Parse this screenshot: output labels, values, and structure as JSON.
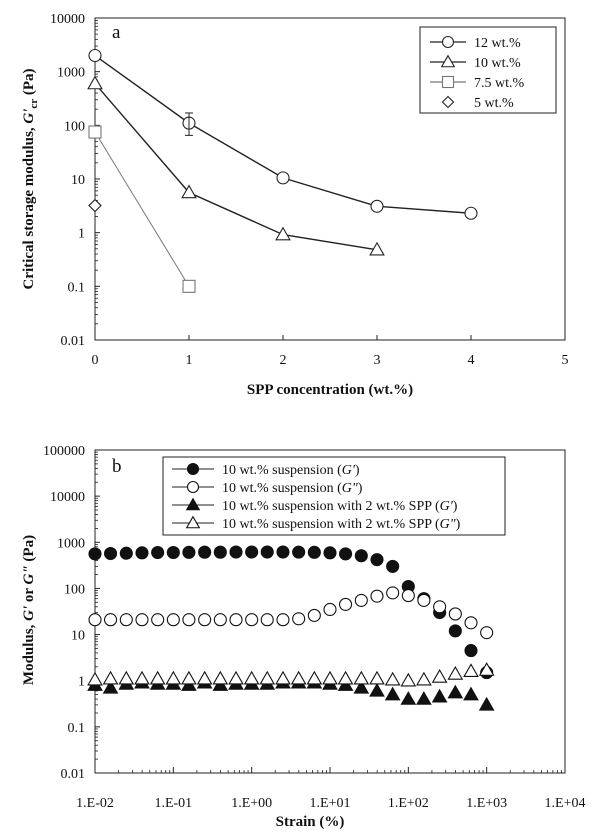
{
  "chart_data": [
    {
      "panel_label": "a",
      "type": "line",
      "xlabel": "SPP concentration (wt.%)",
      "ylabel_main": "Critical storage modulus, ",
      "ylabel_sym": "G'",
      "ylabel_sub": "cr",
      "ylabel_unit": " (Pa)",
      "xlim": [
        0,
        5
      ],
      "ylim": [
        0.01,
        10000
      ],
      "yscale": "log",
      "xticks": [
        "0",
        "1",
        "2",
        "3",
        "4",
        "5"
      ],
      "yticks": [
        "0.01",
        "0.1",
        "1",
        "10",
        "100",
        "1000",
        "10000"
      ],
      "grid": false,
      "legend_position": "top-right",
      "series": [
        {
          "name": "12 wt.%",
          "marker": "circle",
          "color": "#222222",
          "x": [
            0,
            1,
            2,
            3,
            4
          ],
          "y": [
            2000,
            110,
            10.5,
            3.1,
            2.3
          ]
        },
        {
          "name": "10 wt.%",
          "marker": "triangle",
          "color": "#222222",
          "x": [
            0,
            1,
            2,
            3
          ],
          "y": [
            600,
            5.6,
            0.92,
            0.48
          ]
        },
        {
          "name": "7.5 wt.%",
          "marker": "square",
          "color": "#777777",
          "x": [
            0,
            1
          ],
          "y": [
            75,
            0.1
          ]
        },
        {
          "name": "5 wt.%",
          "marker": "diamond",
          "color": "#222222",
          "x": [
            0
          ],
          "y": [
            3.2
          ]
        }
      ]
    },
    {
      "panel_label": "b",
      "type": "scatter",
      "xlabel": "Strain (%)",
      "ylabel_main": "Modulus, ",
      "ylabel_sym1": "G'",
      "ylabel_or": " or ",
      "ylabel_sym2": "G\"",
      "ylabel_unit": " (Pa)",
      "xscale": "log",
      "yscale": "log",
      "xlim": [
        0.01,
        10000
      ],
      "ylim": [
        0.01,
        100000
      ],
      "xticks": [
        "1.E-02",
        "1.E-01",
        "1.E+00",
        "1.E+01",
        "1.E+02",
        "1.E+03",
        "1.E+04"
      ],
      "yticks": [
        "0.01",
        "0.1",
        "1",
        "10",
        "100",
        "1000",
        "10000",
        "100000"
      ],
      "grid": false,
      "legend_position": "top",
      "series": [
        {
          "name_text": "10 wt.% suspension (",
          "name_sym": "G'",
          "name_end": ")",
          "marker": "filled-circle",
          "x": [
            0.01,
            0.0158,
            0.0251,
            0.0398,
            0.0631,
            0.1,
            0.158,
            0.251,
            0.398,
            0.631,
            1,
            1.58,
            2.51,
            3.98,
            6.31,
            10,
            15.8,
            25.1,
            39.8,
            63.1,
            100,
            158,
            251,
            398,
            631,
            1000
          ],
          "y": [
            560,
            570,
            580,
            590,
            600,
            600,
            605,
            610,
            610,
            615,
            615,
            615,
            615,
            612,
            605,
            590,
            560,
            510,
            420,
            300,
            110,
            60,
            30,
            12,
            4.5,
            1.5
          ]
        },
        {
          "name_text": "10 wt.% suspension (",
          "name_sym": "G\"",
          "name_end": ")",
          "marker": "open-circle",
          "x": [
            0.01,
            0.0158,
            0.0251,
            0.0398,
            0.0631,
            0.1,
            0.158,
            0.251,
            0.398,
            0.631,
            1,
            1.58,
            2.51,
            3.98,
            6.31,
            10,
            15.8,
            25.1,
            39.8,
            63.1,
            100,
            158,
            251,
            398,
            631,
            1000
          ],
          "y": [
            21,
            21,
            21,
            21,
            21,
            21,
            21,
            21,
            21,
            21,
            21,
            21,
            21,
            22,
            26,
            35,
            45,
            55,
            68,
            80,
            70,
            55,
            40,
            28,
            18,
            11
          ]
        },
        {
          "name_text": "10 wt.% suspension with 2 wt.% SPP (",
          "name_sym": "G'",
          "name_end": ")",
          "marker": "filled-triangle",
          "x": [
            0.01,
            0.0158,
            0.0251,
            0.0398,
            0.0631,
            0.1,
            0.158,
            0.251,
            0.398,
            0.631,
            1,
            1.58,
            2.51,
            3.98,
            6.31,
            10,
            15.8,
            25.1,
            39.8,
            63.1,
            100,
            158,
            251,
            398,
            631,
            1000
          ],
          "y": [
            0.8,
            0.7,
            0.85,
            0.9,
            0.85,
            0.85,
            0.8,
            0.9,
            0.8,
            0.85,
            0.85,
            0.85,
            0.9,
            0.9,
            0.9,
            0.85,
            0.8,
            0.7,
            0.6,
            0.5,
            0.4,
            0.4,
            0.45,
            0.55,
            0.5,
            0.3
          ]
        },
        {
          "name_text": "10 wt.% suspension with 2 wt.% SPP (",
          "name_sym": "G\"",
          "name_end": ")",
          "marker": "open-triangle",
          "x": [
            0.01,
            0.0158,
            0.0251,
            0.0398,
            0.0631,
            0.1,
            0.158,
            0.251,
            0.398,
            0.631,
            1,
            1.58,
            2.51,
            3.98,
            6.31,
            10,
            15.8,
            25.1,
            39.8,
            63.1,
            100,
            158,
            251,
            398,
            631,
            1000
          ],
          "y": [
            1.05,
            1.1,
            1.1,
            1.1,
            1.1,
            1.1,
            1.1,
            1.1,
            1.1,
            1.1,
            1.1,
            1.1,
            1.1,
            1.1,
            1.1,
            1.1,
            1.1,
            1.1,
            1.1,
            1.05,
            1.0,
            1.05,
            1.2,
            1.4,
            1.6,
            1.7
          ]
        }
      ]
    }
  ]
}
